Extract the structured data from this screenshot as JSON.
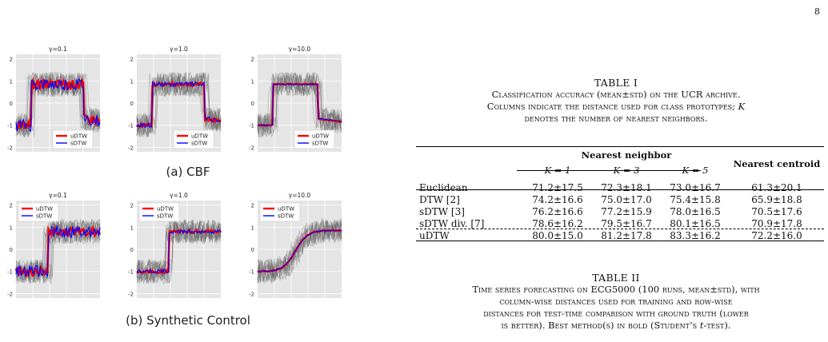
{
  "page_number": "8",
  "figure": {
    "gammas": [
      "γ=0.1",
      "γ=1.0",
      "γ=10.0"
    ],
    "y_ticks": [
      "2",
      "1",
      "0",
      "-1",
      "-2"
    ],
    "legend": {
      "udtw": "uDTW",
      "sdtw": "sDTW"
    },
    "colors": {
      "udtw": "#ff0000",
      "sdtw": "#0000ff",
      "bg": "#e5e5e5",
      "trace": "#555555"
    },
    "panel_a_label": "(a) CBF",
    "panel_b_label": "(b) Synthetic Control"
  },
  "table1": {
    "title": "TABLE I",
    "caption_line1": "Classification accuracy (mean±std) on the UCR archive.",
    "caption_line2_pre": "Columns indicate the distance used for class prototypes; ",
    "caption_line2_var": "K",
    "caption_line3": "denotes the number of nearest neighbors.",
    "header_group": "Nearest neighbor",
    "header_centroid": "Nearest centroid",
    "k_labels": [
      "K = 1",
      "K = 3",
      "K = 5"
    ],
    "rows": [
      {
        "name": "Euclidean",
        "k1": "71.2±17.5",
        "k3": "72.3±18.1",
        "k5": "73.0±16.7",
        "centroid": "61.3±20.1"
      },
      {
        "name": "DTW [2]",
        "k1": "74.2±16.6",
        "k3": "75.0±17.0",
        "k5": "75.4±15.8",
        "centroid": "65.9±18.8"
      },
      {
        "name": "sDTW [3]",
        "k1": "76.2±16.6",
        "k3": "77.2±15.9",
        "k5": "78.0±16.5",
        "centroid": "70.5±17.6"
      },
      {
        "name": "sDTW div. [7]",
        "k1": "78.6±16.2",
        "k3": "79.5±16.7",
        "k5": "80.1±16.5",
        "centroid": "70.9±17.8"
      },
      {
        "name": "uDTW",
        "k1": "80.0±15.0",
        "k3": "81.2±17.8",
        "k5": "83.3±16.2",
        "centroid": "72.2±16.0"
      }
    ]
  },
  "table2": {
    "title": "TABLE II",
    "caption_line1": "Time series forecasting on ECG5000 (100 runs, mean±std), with",
    "caption_line2": "column-wise distances used for training and row-wise",
    "caption_line3": "distances for test-time comparison with ground truth (lower",
    "caption_line4_pre": "is better). Best method(s) in bold (Student’s ",
    "caption_line4_var": "t",
    "caption_line4_post": "-test)."
  }
}
